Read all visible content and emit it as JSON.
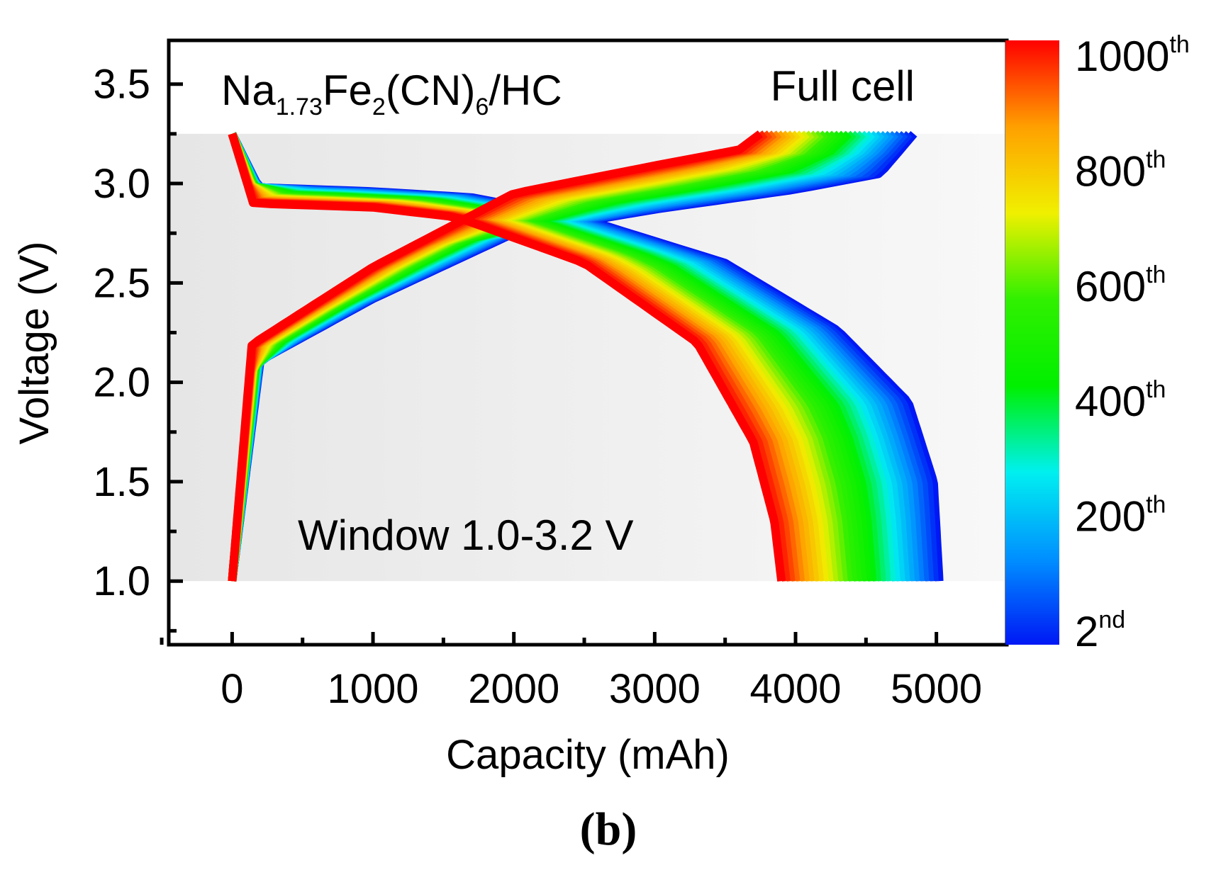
{
  "chart_data": {
    "type": "line",
    "title_parts": {
      "p1": "Na",
      "p2": "1.73",
      "p3": "Fe",
      "p4": "2",
      "p5": "(CN)",
      "p6": "6",
      "p7": "/HC"
    },
    "annotation_top_right": "Full cell",
    "annotation_bottom": "Window 1.0-3.2 V",
    "xlabel": "Capacity (mAh)",
    "ylabel": "Voltage (V)",
    "xlim": [
      -450,
      5500
    ],
    "ylim": [
      0.68,
      3.72
    ],
    "xticks": [
      0,
      1000,
      2000,
      3000,
      4000,
      5000
    ],
    "xtick_labels": [
      "0",
      "1000",
      "2000",
      "3000",
      "4000",
      "5000"
    ],
    "yticks": [
      1.0,
      1.5,
      2.0,
      2.5,
      3.0,
      3.5
    ],
    "ytick_labels": [
      "1.0",
      "1.5",
      "2.0",
      "2.5",
      "3.0",
      "3.5"
    ],
    "voltage_window_shading": [
      1.0,
      3.25
    ],
    "colorbar": {
      "colors": [
        "#0018f5",
        "#0090ff",
        "#00f0f0",
        "#00f000",
        "#30f000",
        "#f0f000",
        "#ffa000",
        "#ff0000"
      ],
      "ticks": [
        {
          "base": "2",
          "sup": "nd"
        },
        {
          "base": "200",
          "sup": "th"
        },
        {
          "base": "400",
          "sup": "th"
        },
        {
          "base": "600",
          "sup": "th"
        },
        {
          "base": "800",
          "sup": "th"
        },
        {
          "base": "1000",
          "sup": "th"
        }
      ]
    },
    "series": [
      {
        "name": "2nd",
        "charge": [
          [
            0,
            1.0
          ],
          [
            200,
            2.11
          ],
          [
            1000,
            2.42
          ],
          [
            2000,
            2.75
          ],
          [
            3000,
            2.87
          ],
          [
            4000,
            2.97
          ],
          [
            4600,
            3.05
          ],
          [
            4840,
            3.25
          ]
        ],
        "discharge": [
          [
            0,
            3.25
          ],
          [
            190,
            2.98
          ],
          [
            1000,
            2.96
          ],
          [
            1700,
            2.93
          ],
          [
            2500,
            2.82
          ],
          [
            3500,
            2.6
          ],
          [
            4300,
            2.26
          ],
          [
            4800,
            1.9
          ],
          [
            4980,
            1.5
          ],
          [
            5020,
            1.0
          ]
        ]
      },
      {
        "name": "1000th",
        "charge": [
          [
            0,
            1.0
          ],
          [
            140,
            2.19
          ],
          [
            1000,
            2.58
          ],
          [
            2000,
            2.95
          ],
          [
            3000,
            3.09
          ],
          [
            3600,
            3.17
          ],
          [
            3750,
            3.25
          ]
        ],
        "discharge": [
          [
            0,
            3.25
          ],
          [
            150,
            2.9
          ],
          [
            1000,
            2.88
          ],
          [
            1600,
            2.83
          ],
          [
            2500,
            2.6
          ],
          [
            3300,
            2.2
          ],
          [
            3700,
            1.7
          ],
          [
            3850,
            1.3
          ],
          [
            3900,
            1.0
          ]
        ]
      }
    ],
    "caption": "(b)"
  }
}
